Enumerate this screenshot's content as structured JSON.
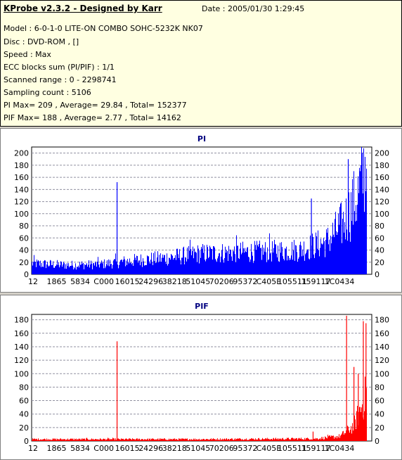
{
  "header": {
    "title": "KProbe v2.3.2 - Designed by Karr",
    "date": "Date : 2005/01/30 1:29:45",
    "lines": [
      "Model : 6-0-1-0 LITE-ON COMBO SOHC-5232K NK07",
      "Disc : DVD-ROM ,  []",
      "Speed : Max",
      "ECC blocks sum (PI/PIF) : 1/1",
      "Scanned range : 0 - 2298741",
      "Sampling count : 5106",
      "PI Max= 209 , Average= 29.84 , Total= 152377",
      "PIF Max= 188 , Average= 2.77 , Total= 14162"
    ]
  },
  "chart_data": [
    {
      "type": "bar",
      "title": "PI",
      "color": "#0000ff",
      "ylim": [
        0,
        210
      ],
      "yticks": [
        0,
        20,
        40,
        60,
        80,
        100,
        120,
        140,
        160,
        180,
        200
      ],
      "xtick_labels": [
        "12",
        "1865",
        "5834",
        "C000",
        "16015",
        "24296",
        "38218",
        "51045",
        "70206",
        "95372",
        "C405E",
        "105511",
        "159117",
        "1C0434"
      ],
      "grid": true,
      "max": 209,
      "average": 29.84,
      "spikes": [
        {
          "pos": 0.255,
          "value": 152
        },
        {
          "pos": 0.835,
          "value": 125
        },
        {
          "pos": 0.945,
          "value": 190
        },
        {
          "pos": 0.985,
          "value": 195
        }
      ],
      "envelope": [
        [
          0,
          20
        ],
        [
          0.1,
          17
        ],
        [
          0.2,
          18
        ],
        [
          0.3,
          25
        ],
        [
          0.4,
          30
        ],
        [
          0.5,
          38
        ],
        [
          0.6,
          40
        ],
        [
          0.7,
          42
        ],
        [
          0.8,
          45
        ],
        [
          0.88,
          60
        ],
        [
          0.93,
          95
        ],
        [
          0.97,
          140
        ],
        [
          1.0,
          209
        ]
      ]
    },
    {
      "type": "bar",
      "title": "PIF",
      "color": "#ff0000",
      "ylim": [
        0,
        188
      ],
      "yticks": [
        0,
        20,
        40,
        60,
        80,
        100,
        120,
        140,
        160,
        180
      ],
      "xtick_labels": [
        "12",
        "1865",
        "5834",
        "C000",
        "16015",
        "24296",
        "38218",
        "51045",
        "70206",
        "95372",
        "C405E",
        "105511",
        "159117",
        "1C0434"
      ],
      "grid": true,
      "max": 188,
      "average": 2.77,
      "spikes": [
        {
          "pos": 0.255,
          "value": 148
        },
        {
          "pos": 0.84,
          "value": 14
        },
        {
          "pos": 0.94,
          "value": 186
        },
        {
          "pos": 0.962,
          "value": 110
        },
        {
          "pos": 0.975,
          "value": 100
        },
        {
          "pos": 0.99,
          "value": 178
        },
        {
          "pos": 0.998,
          "value": 175
        }
      ],
      "envelope": [
        [
          0,
          3
        ],
        [
          0.5,
          3
        ],
        [
          0.85,
          4
        ],
        [
          0.92,
          8
        ],
        [
          0.96,
          25
        ],
        [
          1.0,
          80
        ]
      ]
    }
  ]
}
